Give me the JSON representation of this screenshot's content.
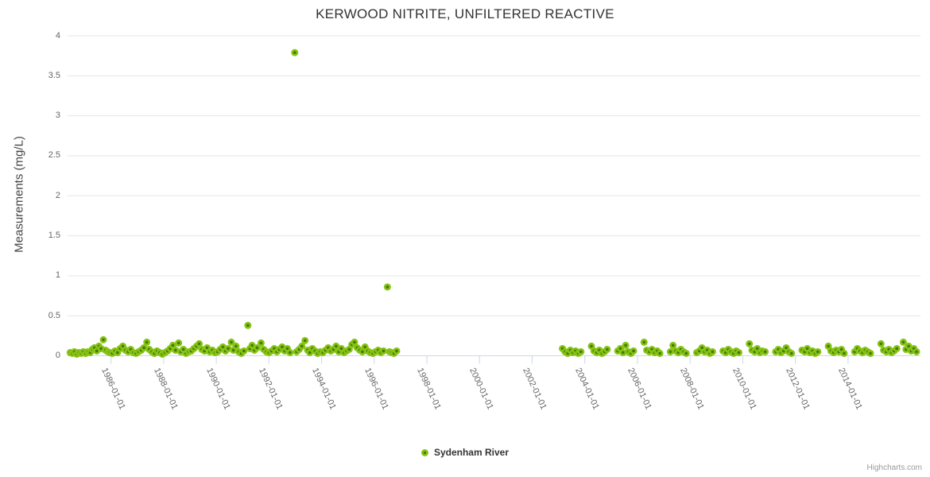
{
  "colors": {
    "marker_outer": "#87c214",
    "marker_inner": "#3f7b06",
    "gridline": "#e6e6e6",
    "axis_line": "#ccd6eb",
    "title_text": "#333333",
    "tick_text": "#666666",
    "credits_text": "#999999"
  },
  "credits": {
    "label": "Highcharts.com"
  },
  "chart_data": {
    "type": "scatter",
    "title": "KERWOOD NITRITE, UNFILTERED REACTIVE",
    "xlabel": "",
    "ylabel": "Measurements (mg/L)",
    "x_unit": "decimal_year",
    "xlim": [
      1984.35,
      2016.75
    ],
    "ylim": [
      0,
      4
    ],
    "grid": "horizontal-only",
    "legend_position": "bottom-center",
    "x_tick_positions": [
      1986,
      1988,
      1990,
      1992,
      1994,
      1996,
      1998,
      2000,
      2002,
      2004,
      2006,
      2008,
      2010,
      2012,
      2014
    ],
    "x_tick_labels": [
      "1986-01-01",
      "1988-01-01",
      "1990-01-01",
      "1992-01-01",
      "1994-01-01",
      "1996-01-01",
      "1998-01-01",
      "2000-01-01",
      "2002-01-01",
      "2004-01-01",
      "2006-01-01",
      "2008-01-01",
      "2010-01-01",
      "2012-01-01",
      "2014-01-01"
    ],
    "y_tick_positions": [
      0,
      0.5,
      1,
      1.5,
      2,
      2.5,
      3,
      3.5,
      4
    ],
    "y_tick_labels": [
      "0",
      "0.5",
      "1",
      "1.5",
      "2",
      "2.5",
      "3",
      "3.5",
      "4"
    ],
    "series": [
      {
        "name": "Sydenham River",
        "points": [
          [
            1984.45,
            0.04
          ],
          [
            1984.53,
            0.03
          ],
          [
            1984.61,
            0.05
          ],
          [
            1984.7,
            0.02
          ],
          [
            1984.78,
            0.04
          ],
          [
            1984.87,
            0.03
          ],
          [
            1984.95,
            0.05
          ],
          [
            1985.04,
            0.03
          ],
          [
            1985.12,
            0.05
          ],
          [
            1985.21,
            0.04
          ],
          [
            1985.29,
            0.08
          ],
          [
            1985.37,
            0.1
          ],
          [
            1985.46,
            0.06
          ],
          [
            1985.54,
            0.12
          ],
          [
            1985.62,
            0.09
          ],
          [
            1985.71,
            0.2
          ],
          [
            1985.79,
            0.07
          ],
          [
            1985.88,
            0.05
          ],
          [
            1985.96,
            0.04
          ],
          [
            1986.05,
            0.03
          ],
          [
            1986.15,
            0.06
          ],
          [
            1986.25,
            0.04
          ],
          [
            1986.35,
            0.09
          ],
          [
            1986.45,
            0.12
          ],
          [
            1986.55,
            0.07
          ],
          [
            1986.65,
            0.05
          ],
          [
            1986.75,
            0.08
          ],
          [
            1986.85,
            0.04
          ],
          [
            1986.95,
            0.03
          ],
          [
            1987.05,
            0.05
          ],
          [
            1987.15,
            0.07
          ],
          [
            1987.25,
            0.1
          ],
          [
            1987.36,
            0.17
          ],
          [
            1987.45,
            0.08
          ],
          [
            1987.55,
            0.05
          ],
          [
            1987.65,
            0.03
          ],
          [
            1987.75,
            0.06
          ],
          [
            1987.85,
            0.04
          ],
          [
            1987.95,
            0.02
          ],
          [
            1988.05,
            0.04
          ],
          [
            1988.15,
            0.06
          ],
          [
            1988.25,
            0.09
          ],
          [
            1988.35,
            0.13
          ],
          [
            1988.45,
            0.07
          ],
          [
            1988.57,
            0.16
          ],
          [
            1988.65,
            0.05
          ],
          [
            1988.75,
            0.08
          ],
          [
            1988.85,
            0.03
          ],
          [
            1988.95,
            0.05
          ],
          [
            1989.05,
            0.06
          ],
          [
            1989.15,
            0.09
          ],
          [
            1989.25,
            0.12
          ],
          [
            1989.35,
            0.15
          ],
          [
            1989.45,
            0.08
          ],
          [
            1989.55,
            0.06
          ],
          [
            1989.65,
            0.1
          ],
          [
            1989.75,
            0.05
          ],
          [
            1989.85,
            0.07
          ],
          [
            1989.95,
            0.04
          ],
          [
            1990.05,
            0.05
          ],
          [
            1990.15,
            0.08
          ],
          [
            1990.25,
            0.11
          ],
          [
            1990.35,
            0.06
          ],
          [
            1990.45,
            0.09
          ],
          [
            1990.57,
            0.17
          ],
          [
            1990.65,
            0.07
          ],
          [
            1990.75,
            0.12
          ],
          [
            1990.85,
            0.05
          ],
          [
            1990.95,
            0.03
          ],
          [
            1991.05,
            0.06
          ],
          [
            1991.2,
            0.38
          ],
          [
            1991.28,
            0.09
          ],
          [
            1991.36,
            0.13
          ],
          [
            1991.45,
            0.07
          ],
          [
            1991.55,
            0.1
          ],
          [
            1991.7,
            0.16
          ],
          [
            1991.8,
            0.08
          ],
          [
            1991.9,
            0.05
          ],
          [
            1992.0,
            0.04
          ],
          [
            1992.1,
            0.06
          ],
          [
            1992.2,
            0.09
          ],
          [
            1992.3,
            0.05
          ],
          [
            1992.4,
            0.08
          ],
          [
            1992.5,
            0.11
          ],
          [
            1992.6,
            0.06
          ],
          [
            1992.7,
            0.09
          ],
          [
            1992.8,
            0.04
          ],
          [
            1992.98,
            3.79
          ],
          [
            1993.05,
            0.05
          ],
          [
            1993.15,
            0.08
          ],
          [
            1993.25,
            0.12
          ],
          [
            1993.37,
            0.19
          ],
          [
            1993.47,
            0.07
          ],
          [
            1993.55,
            0.04
          ],
          [
            1993.65,
            0.09
          ],
          [
            1993.75,
            0.06
          ],
          [
            1993.85,
            0.03
          ],
          [
            1993.95,
            0.05
          ],
          [
            1994.05,
            0.04
          ],
          [
            1994.15,
            0.07
          ],
          [
            1994.25,
            0.1
          ],
          [
            1994.35,
            0.06
          ],
          [
            1994.45,
            0.08
          ],
          [
            1994.55,
            0.12
          ],
          [
            1994.65,
            0.05
          ],
          [
            1994.75,
            0.09
          ],
          [
            1994.85,
            0.04
          ],
          [
            1994.95,
            0.06
          ],
          [
            1995.05,
            0.08
          ],
          [
            1995.15,
            0.14
          ],
          [
            1995.25,
            0.17
          ],
          [
            1995.35,
            0.1
          ],
          [
            1995.45,
            0.07
          ],
          [
            1995.55,
            0.05
          ],
          [
            1995.65,
            0.11
          ],
          [
            1995.75,
            0.06
          ],
          [
            1995.85,
            0.04
          ],
          [
            1995.95,
            0.03
          ],
          [
            1996.05,
            0.05
          ],
          [
            1996.15,
            0.07
          ],
          [
            1996.25,
            0.04
          ],
          [
            1996.35,
            0.06
          ],
          [
            1996.5,
            0.86
          ],
          [
            1996.58,
            0.05
          ],
          [
            1996.66,
            0.04
          ],
          [
            1996.75,
            0.03
          ],
          [
            1996.85,
            0.06
          ],
          [
            2003.15,
            0.09
          ],
          [
            2003.25,
            0.05
          ],
          [
            2003.35,
            0.03
          ],
          [
            2003.45,
            0.07
          ],
          [
            2003.55,
            0.04
          ],
          [
            2003.65,
            0.06
          ],
          [
            2003.75,
            0.03
          ],
          [
            2003.85,
            0.05
          ],
          [
            2004.25,
            0.12
          ],
          [
            2004.35,
            0.06
          ],
          [
            2004.45,
            0.04
          ],
          [
            2004.55,
            0.07
          ],
          [
            2004.65,
            0.03
          ],
          [
            2004.75,
            0.05
          ],
          [
            2004.85,
            0.08
          ],
          [
            2005.25,
            0.06
          ],
          [
            2005.35,
            0.09
          ],
          [
            2005.45,
            0.04
          ],
          [
            2005.55,
            0.13
          ],
          [
            2005.65,
            0.05
          ],
          [
            2005.75,
            0.03
          ],
          [
            2005.85,
            0.06
          ],
          [
            2006.25,
            0.17
          ],
          [
            2006.35,
            0.07
          ],
          [
            2006.45,
            0.05
          ],
          [
            2006.55,
            0.08
          ],
          [
            2006.65,
            0.04
          ],
          [
            2006.75,
            0.06
          ],
          [
            2006.85,
            0.03
          ],
          [
            2007.25,
            0.05
          ],
          [
            2007.35,
            0.13
          ],
          [
            2007.45,
            0.06
          ],
          [
            2007.55,
            0.04
          ],
          [
            2007.65,
            0.08
          ],
          [
            2007.75,
            0.05
          ],
          [
            2007.85,
            0.03
          ],
          [
            2008.25,
            0.04
          ],
          [
            2008.35,
            0.06
          ],
          [
            2008.45,
            0.1
          ],
          [
            2008.55,
            0.05
          ],
          [
            2008.65,
            0.07
          ],
          [
            2008.75,
            0.03
          ],
          [
            2008.85,
            0.05
          ],
          [
            2009.25,
            0.06
          ],
          [
            2009.35,
            0.04
          ],
          [
            2009.45,
            0.08
          ],
          [
            2009.55,
            0.05
          ],
          [
            2009.65,
            0.03
          ],
          [
            2009.75,
            0.06
          ],
          [
            2009.85,
            0.04
          ],
          [
            2010.25,
            0.15
          ],
          [
            2010.35,
            0.07
          ],
          [
            2010.45,
            0.05
          ],
          [
            2010.55,
            0.09
          ],
          [
            2010.65,
            0.04
          ],
          [
            2010.75,
            0.06
          ],
          [
            2010.85,
            0.05
          ],
          [
            2011.25,
            0.05
          ],
          [
            2011.35,
            0.08
          ],
          [
            2011.45,
            0.04
          ],
          [
            2011.55,
            0.06
          ],
          [
            2011.65,
            0.1
          ],
          [
            2011.75,
            0.05
          ],
          [
            2011.85,
            0.03
          ],
          [
            2012.25,
            0.07
          ],
          [
            2012.35,
            0.05
          ],
          [
            2012.45,
            0.09
          ],
          [
            2012.55,
            0.04
          ],
          [
            2012.65,
            0.06
          ],
          [
            2012.75,
            0.03
          ],
          [
            2012.85,
            0.05
          ],
          [
            2013.25,
            0.12
          ],
          [
            2013.35,
            0.06
          ],
          [
            2013.45,
            0.04
          ],
          [
            2013.55,
            0.07
          ],
          [
            2013.65,
            0.05
          ],
          [
            2013.75,
            0.08
          ],
          [
            2013.85,
            0.03
          ],
          [
            2014.25,
            0.05
          ],
          [
            2014.35,
            0.09
          ],
          [
            2014.45,
            0.06
          ],
          [
            2014.55,
            0.04
          ],
          [
            2014.65,
            0.07
          ],
          [
            2014.75,
            0.05
          ],
          [
            2014.85,
            0.03
          ],
          [
            2015.25,
            0.15
          ],
          [
            2015.35,
            0.07
          ],
          [
            2015.45,
            0.05
          ],
          [
            2015.55,
            0.08
          ],
          [
            2015.65,
            0.04
          ],
          [
            2015.75,
            0.06
          ],
          [
            2015.85,
            0.09
          ],
          [
            2016.1,
            0.17
          ],
          [
            2016.2,
            0.08
          ],
          [
            2016.3,
            0.12
          ],
          [
            2016.4,
            0.06
          ],
          [
            2016.5,
            0.09
          ],
          [
            2016.6,
            0.05
          ]
        ]
      }
    ]
  }
}
